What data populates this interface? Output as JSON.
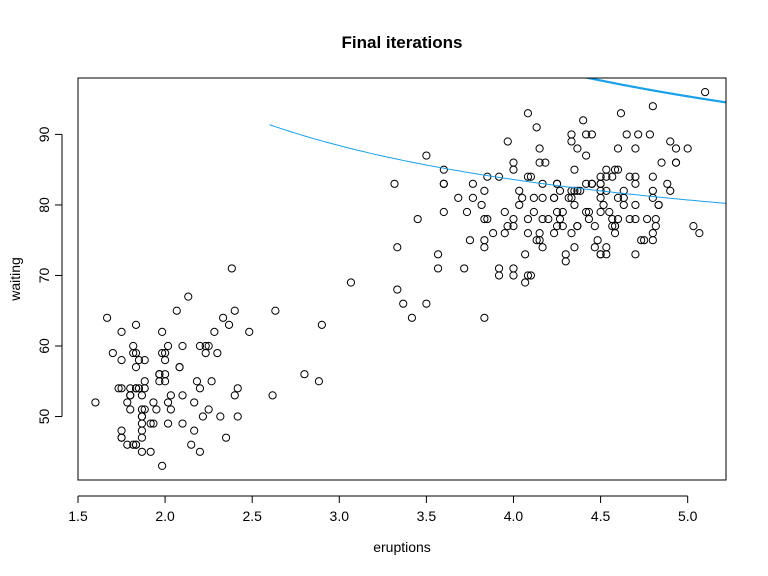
{
  "chart_data": {
    "type": "scatter",
    "title": "Final iterations",
    "xlabel": "eruptions",
    "ylabel": "waiting",
    "xlim": [
      1.5,
      5.22
    ],
    "ylim": [
      41,
      98
    ],
    "xticks": [
      "1.5",
      "2.0",
      "2.5",
      "3.0",
      "3.5",
      "4.0",
      "4.5",
      "5.0"
    ],
    "xtick_values": [
      1.5,
      2.0,
      2.5,
      3.0,
      3.5,
      4.0,
      4.5,
      5.0
    ],
    "yticks": [
      "50",
      "60",
      "70",
      "80",
      "90"
    ],
    "ytick_values": [
      50,
      60,
      70,
      80,
      90
    ],
    "grid": false,
    "point_style": "open-circle",
    "point_color": "#000000",
    "curve_color": "#1aa0e8",
    "series": [
      {
        "x": [
          3.6,
          1.8,
          3.333,
          2.283,
          4.533,
          2.883,
          4.7,
          3.6,
          1.95,
          4.35,
          1.833,
          3.917,
          4.2,
          1.75,
          4.7,
          2.167,
          1.75,
          4.8,
          1.6,
          4.25,
          1.8,
          1.75,
          3.45,
          3.067,
          4.533,
          3.6,
          1.967,
          4.083,
          3.85,
          4.433,
          4.3,
          4.467,
          3.367,
          4.033,
          3.833,
          2.017,
          1.867,
          4.833,
          1.833,
          4.783,
          4.35,
          1.883,
          4.567,
          1.75,
          4.533,
          3.317,
          3.833,
          2.1,
          4.633,
          2.0,
          4.8,
          4.716,
          1.833,
          4.833,
          1.733,
          4.883,
          3.717,
          1.667,
          4.567,
          4.317,
          2.233,
          4.5,
          1.75,
          4.8,
          1.817,
          4.4,
          4.167,
          4.7,
          2.067,
          4.7,
          4.033,
          1.967,
          4.5,
          4.0,
          1.983,
          5.067,
          2.017,
          4.567,
          3.883,
          3.6,
          4.133,
          4.333,
          4.1,
          2.633,
          4.067,
          4.933,
          3.95,
          4.517,
          2.167,
          4.0,
          2.2,
          4.333,
          1.867,
          4.817,
          1.833,
          4.3,
          4.667,
          3.75,
          1.867,
          4.9,
          2.483,
          4.367,
          2.1,
          4.5,
          4.05,
          1.867,
          4.7,
          1.783,
          4.85,
          3.683,
          4.733,
          2.3,
          4.9,
          4.417,
          1.7,
          4.633,
          2.317,
          4.6,
          1.817,
          4.417,
          2.617,
          4.067,
          4.25,
          1.967,
          4.6,
          3.767,
          1.917,
          4.5,
          2.267,
          4.65,
          1.867,
          4.167,
          2.8,
          4.333,
          1.833,
          4.383,
          1.883,
          4.933,
          2.033,
          3.733,
          4.233,
          2.233,
          4.533,
          4.817,
          4.333,
          1.983,
          4.633,
          2.017,
          5.1,
          1.8,
          5.033,
          4.0,
          2.4,
          4.6,
          3.567,
          4.0,
          4.5,
          4.083,
          1.8,
          3.967,
          2.2,
          4.15,
          2.0,
          3.833,
          3.5,
          4.583,
          2.367,
          5.0,
          1.933,
          4.617,
          1.917,
          2.083,
          4.583,
          3.333,
          4.167,
          4.333,
          4.5,
          2.417,
          4.0,
          4.167,
          1.883,
          4.583,
          4.25,
          3.767,
          2.033,
          4.433,
          4.083,
          1.833,
          4.417,
          2.183,
          4.8,
          1.833,
          4.8,
          4.1,
          3.966,
          4.233,
          3.5,
          4.366,
          2.25,
          4.667,
          2.1,
          4.35,
          4.133,
          1.867,
          4.6,
          1.783,
          4.367,
          3.85,
          1.933,
          4.5,
          2.383,
          4.7,
          1.867,
          3.833,
          3.417,
          4.233,
          2.4,
          4.8,
          2.0,
          4.15,
          1.867,
          4.267,
          1.75,
          4.483,
          4.0,
          4.117,
          4.083,
          4.267,
          3.917,
          4.55,
          4.083,
          2.417,
          4.183,
          2.217,
          4.45,
          1.883,
          1.85,
          4.283,
          3.95,
          2.333,
          4.15,
          2.35,
          4.933,
          2.9,
          4.583,
          3.833,
          2.083,
          4.367,
          2.133,
          4.35,
          2.2,
          4.45,
          3.567,
          4.5,
          4.15,
          3.817,
          3.917,
          4.45,
          2.0,
          4.283,
          4.767,
          4.533,
          1.85,
          4.25,
          1.983,
          2.25,
          4.75,
          4.117,
          2.15,
          4.417,
          1.817,
          4.467
        ],
        "y": [
          79,
          54,
          74,
          62,
          85,
          55,
          88,
          85,
          51,
          85,
          54,
          84,
          78,
          47,
          83,
          52,
          62,
          84,
          52,
          79,
          51,
          47,
          78,
          69,
          74,
          83,
          55,
          76,
          78,
          79,
          73,
          77,
          66,
          80,
          74,
          52,
          48,
          80,
          59,
          90,
          80,
          58,
          84,
          58,
          73,
          83,
          64,
          53,
          82,
          59,
          75,
          90,
          54,
          80,
          54,
          83,
          71,
          64,
          77,
          81,
          59,
          84,
          48,
          82,
          60,
          92,
          78,
          78,
          65,
          73,
          82,
          56,
          79,
          71,
          62,
          76,
          60,
          78,
          76,
          83,
          75,
          82,
          70,
          65,
          73,
          88,
          76,
          80,
          48,
          86,
          60,
          90,
          50,
          78,
          63,
          72,
          84,
          75,
          51,
          82,
          62,
          88,
          49,
          83,
          81,
          47,
          84,
          52,
          86,
          81,
          75,
          59,
          89,
          79,
          59,
          81,
          50,
          85,
          59,
          87,
          53,
          69,
          77,
          56,
          88,
          81,
          45,
          82,
          55,
          90,
          45,
          83,
          56,
          89,
          46,
          82,
          51,
          86,
          53,
          79,
          81,
          60,
          82,
          77,
          76,
          59,
          80,
          49,
          96,
          53,
          77,
          77,
          65,
          81,
          71,
          70,
          81,
          93,
          53,
          89,
          45,
          86,
          58,
          78,
          66,
          76,
          63,
          88,
          52,
          93,
          49,
          57,
          77,
          68,
          81,
          81,
          73,
          50,
          85,
          74,
          55,
          77,
          83,
          83,
          51,
          78,
          84,
          46,
          83,
          55,
          81,
          57,
          76,
          84,
          77,
          81,
          87,
          77,
          51,
          78,
          60,
          82,
          91,
          53,
          78,
          46,
          77,
          84,
          49,
          83,
          71,
          80,
          49,
          75,
          64,
          76,
          53,
          94,
          55,
          76,
          50,
          82,
          54,
          75,
          78,
          79,
          78,
          78,
          70,
          79,
          70,
          54,
          86,
          50,
          90,
          54,
          54,
          77,
          79,
          64,
          75,
          47,
          86,
          63,
          85,
          82,
          57,
          82,
          67,
          74,
          54,
          83,
          73,
          73,
          88,
          80,
          71,
          83,
          56,
          79,
          78,
          84,
          58,
          83,
          43,
          60,
          75,
          81,
          46,
          90,
          46,
          74
        ]
      }
    ],
    "curves": [
      {
        "name": "",
        "stroke_width_class": "thin",
        "x_from": 2.6,
        "x_to": 5.22,
        "shape": "hyperbola",
        "a": 57.76,
        "b": 69.16
      },
      {
        "name": "",
        "stroke_width_class": "thick",
        "x_from": 4.36,
        "x_to": 5.22,
        "shape": "hyperbola",
        "a": 101.2,
        "b": 75.16
      }
    ]
  }
}
